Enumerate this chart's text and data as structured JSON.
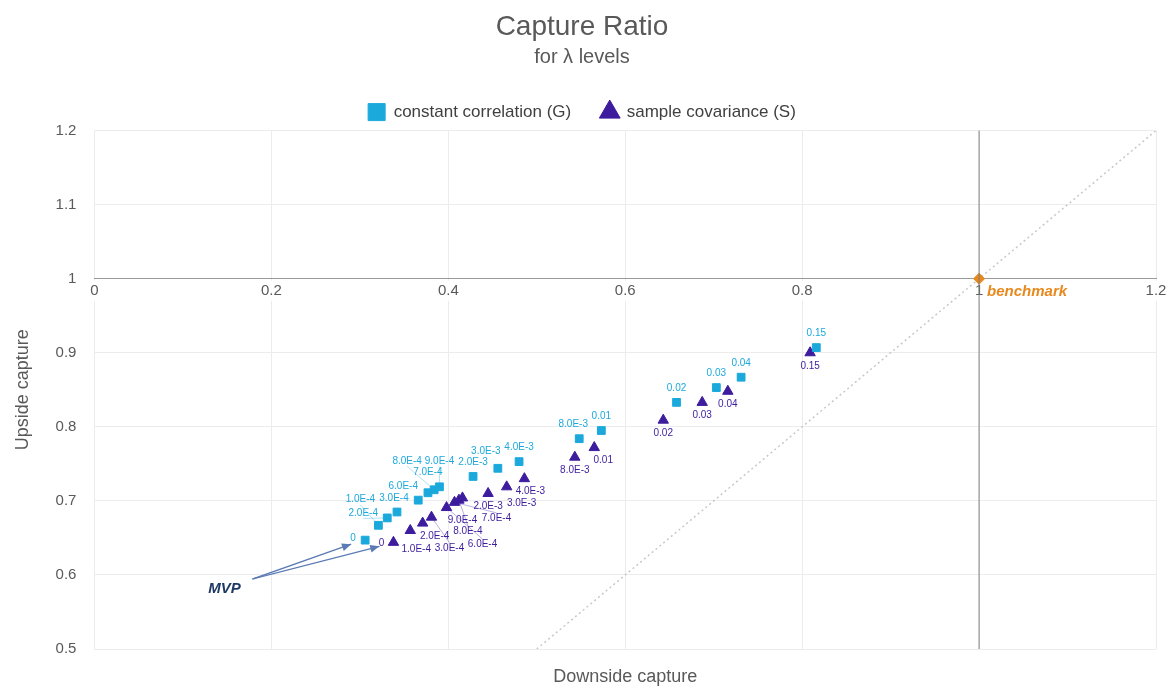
{
  "chart_data": {
    "type": "scatter",
    "title": "Capture Ratio",
    "subtitle": "for λ levels",
    "xlabel": "Downside capture",
    "ylabel": "Upside capture",
    "xlim": [
      0,
      1.2
    ],
    "xticks": [
      0,
      0.2,
      0.4,
      0.6,
      0.8,
      1,
      1.2
    ],
    "ylim": [
      0.5,
      1.2
    ],
    "yticks": [
      0.5,
      0.6,
      0.7,
      0.8,
      0.9,
      1,
      1.1,
      1.2
    ],
    "grid": true,
    "legend": "top",
    "ref_lines": [
      {
        "axis": "x",
        "value": 1,
        "color": "#7f7f7f"
      }
    ],
    "annotations": [
      "MVP",
      {
        "text": "0",
        "x": 0.306,
        "y": 0.647
      },
      {
        "text": "1.0E-4",
        "x": 0.321,
        "y": 0.667
      },
      {
        "text": "2.0E-4",
        "x": 0.331,
        "y": 0.677
      },
      {
        "text": "3.0E-4",
        "x": 0.342,
        "y": 0.685
      },
      {
        "text": "6.0E-4",
        "x": 0.366,
        "y": 0.701
      },
      {
        "text": "7.0E-4",
        "x": 0.377,
        "y": 0.711
      },
      {
        "text": "8.0E-4",
        "x": 0.384,
        "y": 0.715
      },
      {
        "text": "9.0E-4",
        "x": 0.39,
        "y": 0.719
      },
      {
        "text": "2.0E-3",
        "x": 0.428,
        "y": 0.733
      },
      {
        "text": "3.0E-3",
        "x": 0.456,
        "y": 0.744
      },
      {
        "text": "4.0E-3",
        "x": 0.48,
        "y": 0.753
      },
      {
        "text": "8.0E-3",
        "x": 0.548,
        "y": 0.784
      },
      {
        "text": "0.01",
        "x": 0.573,
        "y": 0.795
      },
      {
        "text": "0.02",
        "x": 0.658,
        "y": 0.833
      },
      {
        "text": "0.03",
        "x": 0.703,
        "y": 0.853
      },
      {
        "text": "0.04",
        "x": 0.731,
        "y": 0.867
      },
      {
        "text": "0.15",
        "x": 0.816,
        "y": 0.907
      },
      {
        "text": "0",
        "x": 0.338,
        "y": 0.644
      },
      {
        "text": "1.0E-4",
        "x": 0.357,
        "y": 0.66
      },
      {
        "text": "2.0E-4",
        "x": 0.371,
        "y": 0.67
      },
      {
        "text": "3.0E-4",
        "x": 0.381,
        "y": 0.678
      },
      {
        "text": "6.0E-4",
        "x": 0.398,
        "y": 0.691
      },
      {
        "text": "7.0E-4",
        "x": 0.407,
        "y": 0.698
      },
      {
        "text": "8.0E-4",
        "x": 0.412,
        "y": 0.701
      },
      {
        "text": "9.0E-4",
        "x": 0.416,
        "y": 0.704
      },
      {
        "text": "2.0E-3",
        "x": 0.445,
        "y": 0.71
      },
      {
        "text": "3.0E-3",
        "x": 0.466,
        "y": 0.719
      },
      {
        "text": "4.0E-3",
        "x": 0.486,
        "y": 0.73
      },
      {
        "text": "8.0E-3",
        "x": 0.543,
        "y": 0.759
      },
      {
        "text": "0.01",
        "x": 0.565,
        "y": 0.772
      },
      {
        "text": "0.02",
        "x": 0.643,
        "y": 0.809
      },
      {
        "text": "0.03",
        "x": 0.687,
        "y": 0.833
      },
      {
        "text": "0.04",
        "x": 0.716,
        "y": 0.848
      },
      {
        "text": "0.15",
        "x": 0.809,
        "y": 0.9
      }
    ],
    "series": [
      {
        "name": "constant correlation (G)",
        "color": "#1ba9dc",
        "marker": "square",
        "x": [
          0.306,
          0.321,
          0.331,
          0.342,
          0.366,
          0.377,
          0.384,
          0.39,
          0.428,
          0.456,
          0.48,
          0.548,
          0.573,
          0.658,
          0.703,
          0.731,
          0.816
        ],
        "values": [
          0.647,
          0.667,
          0.677,
          0.685,
          0.701,
          0.711,
          0.715,
          0.719,
          0.733,
          0.744,
          0.753,
          0.784,
          0.795,
          0.833,
          0.853,
          0.867,
          0.907
        ]
      },
      {
        "name": "sample covariance (S)",
        "color": "#3d1c9e",
        "marker": "triangle",
        "x": [
          0.338,
          0.357,
          0.371,
          0.381,
          0.398,
          0.407,
          0.412,
          0.416,
          0.445,
          0.466,
          0.486,
          0.543,
          0.565,
          0.643,
          0.687,
          0.716,
          0.809
        ],
        "values": [
          0.644,
          0.66,
          0.67,
          0.678,
          0.691,
          0.698,
          0.701,
          0.704,
          0.71,
          0.719,
          0.73,
          0.759,
          0.772,
          0.809,
          0.833,
          0.848,
          0.9
        ]
      },
      {
        "name": "benchmark",
        "color": "#e8891e",
        "marker": "diamond",
        "x": [
          1
        ],
        "values": [
          1
        ]
      },
      {
        "type": "line",
        "color": "#c8c8c8",
        "line_style": "dotted",
        "marker": "none",
        "x": [
          0.5,
          1.2
        ],
        "values": [
          0.5,
          1.2
        ]
      }
    ]
  }
}
